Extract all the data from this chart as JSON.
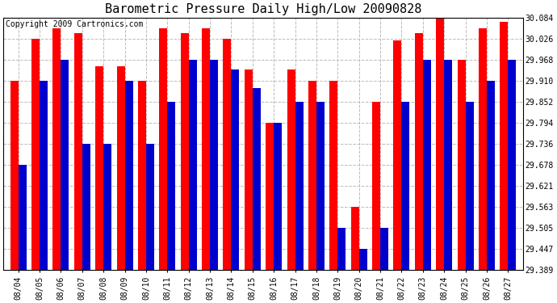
{
  "title": "Barometric Pressure Daily High/Low 20090828",
  "copyright": "Copyright 2009 Cartronics.com",
  "dates": [
    "08/04",
    "08/05",
    "08/06",
    "08/07",
    "08/08",
    "08/09",
    "08/10",
    "08/11",
    "08/12",
    "08/13",
    "08/14",
    "08/15",
    "08/16",
    "08/17",
    "08/18",
    "08/19",
    "08/20",
    "08/21",
    "08/22",
    "08/23",
    "08/24",
    "08/25",
    "08/26",
    "08/27"
  ],
  "highs": [
    29.91,
    30.026,
    30.055,
    30.042,
    29.95,
    29.95,
    29.91,
    30.055,
    30.042,
    30.055,
    30.026,
    29.94,
    29.795,
    29.94,
    29.91,
    29.91,
    29.563,
    29.852,
    30.02,
    30.042,
    30.084,
    29.968,
    30.055,
    30.072
  ],
  "lows": [
    29.678,
    29.91,
    29.968,
    29.736,
    29.736,
    29.91,
    29.736,
    29.852,
    29.968,
    29.968,
    29.94,
    29.89,
    29.795,
    29.852,
    29.852,
    29.505,
    29.447,
    29.505,
    29.852,
    29.968,
    29.968,
    29.852,
    29.91,
    29.968
  ],
  "ymin": 29.389,
  "ymax": 30.084,
  "yticks": [
    29.389,
    29.447,
    29.505,
    29.563,
    29.621,
    29.678,
    29.736,
    29.794,
    29.852,
    29.91,
    29.968,
    30.026,
    30.084
  ],
  "high_color": "#ff0000",
  "low_color": "#0000cc",
  "bg_color": "#ffffff",
  "grid_color": "#bbbbbb",
  "title_fontsize": 11,
  "copyright_fontsize": 7,
  "tick_fontsize": 7,
  "bar_width": 0.38
}
